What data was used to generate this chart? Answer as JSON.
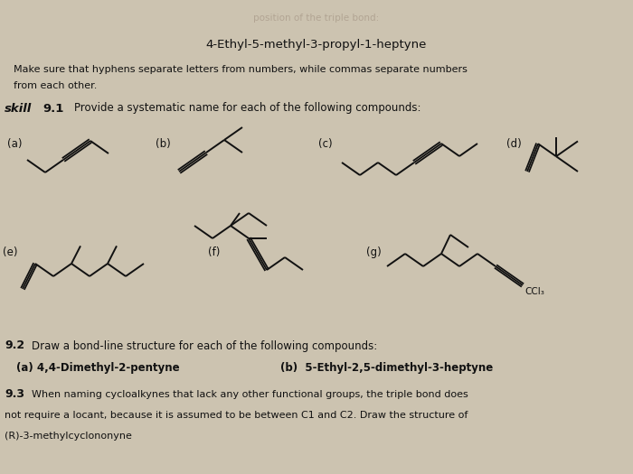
{
  "subtitle": "4-Ethyl-5-methyl-3-propyl-1-heptyne",
  "instruction_line1": "Make sure that hyphens separate letters from numbers, while commas separate numbers",
  "instruction_line2": "from each other.",
  "skill_text": "Provide a systematic name for each of the following compounds:",
  "section_92": "9.2   Draw a bond-line structure for each of the following compounds:",
  "section_92a": "(a) 4,4-Dimethyl-2-pentyne",
  "section_92b": "(b)  5-Ethyl-2,5-dimethyl-3-heptyne",
  "section_93_line1": "9.3   When naming cycloalkynes that lack any other functional groups, the triple bond does",
  "section_93_line2": "not require a locant, because it is assumed to be between C1 and C2. Draw the structure of",
  "section_93_line3": "(R)-3-methylcyclononyne",
  "bg_color": "#ccc3b0",
  "text_color": "#111111",
  "bond_color": "#111111",
  "faded_text_color": "#a09080"
}
